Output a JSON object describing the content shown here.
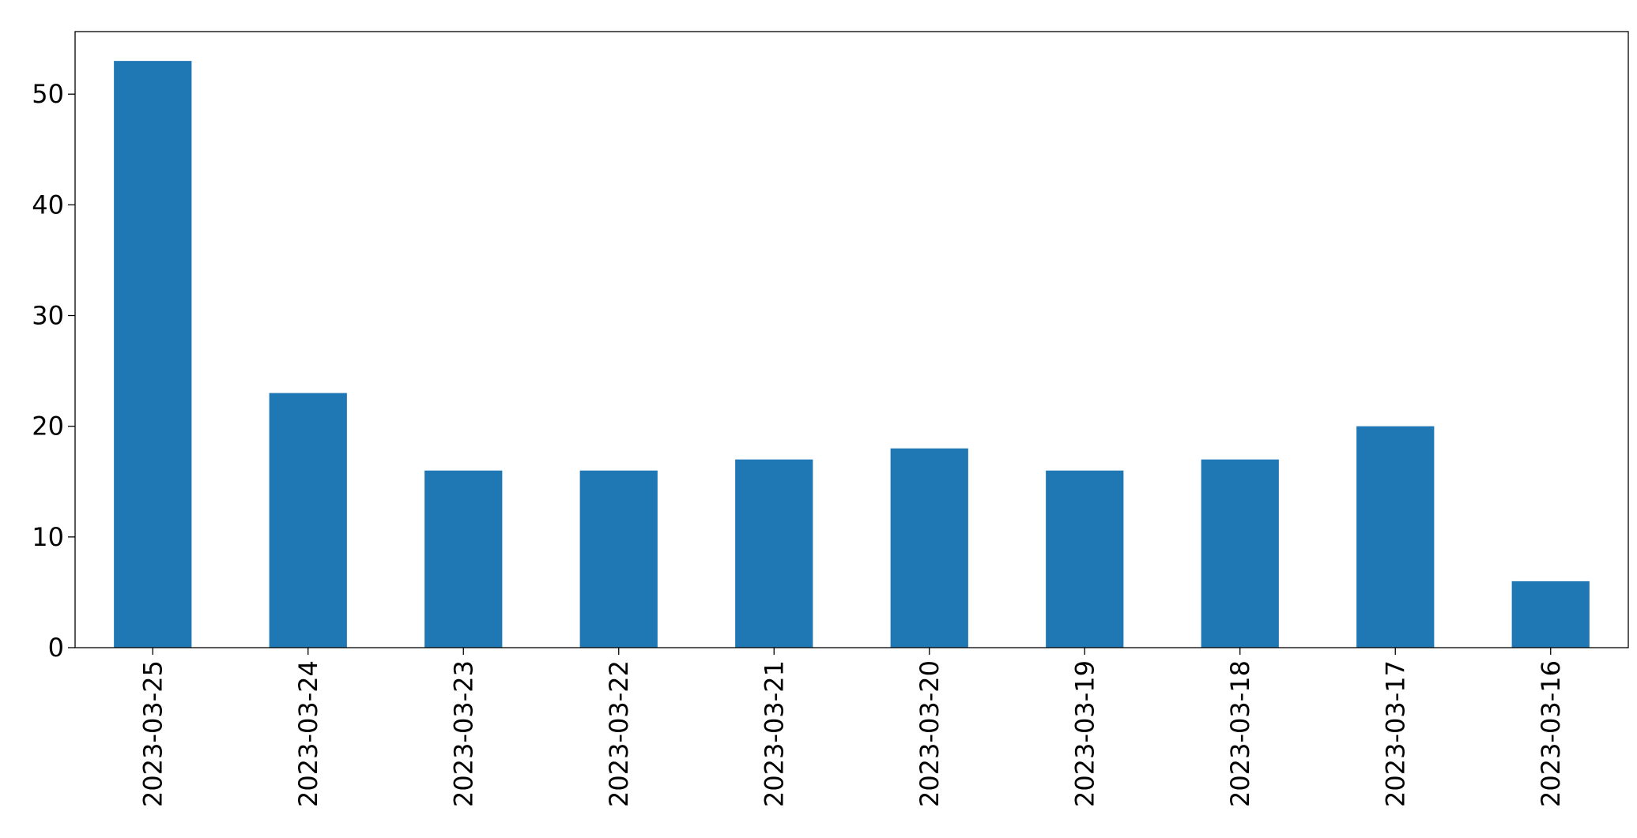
{
  "chart_data": {
    "type": "bar",
    "categories": [
      "2023-03-25",
      "2023-03-24",
      "2023-03-23",
      "2023-03-22",
      "2023-03-21",
      "2023-03-20",
      "2023-03-19",
      "2023-03-18",
      "2023-03-17",
      "2023-03-16"
    ],
    "values": [
      53,
      23,
      16,
      16,
      17,
      18,
      16,
      17,
      20,
      6
    ],
    "color": "#1f77b4",
    "ylim": [
      0,
      55.65
    ],
    "yticks": [
      0,
      10,
      20,
      30,
      40,
      50
    ],
    "grid": false
  }
}
